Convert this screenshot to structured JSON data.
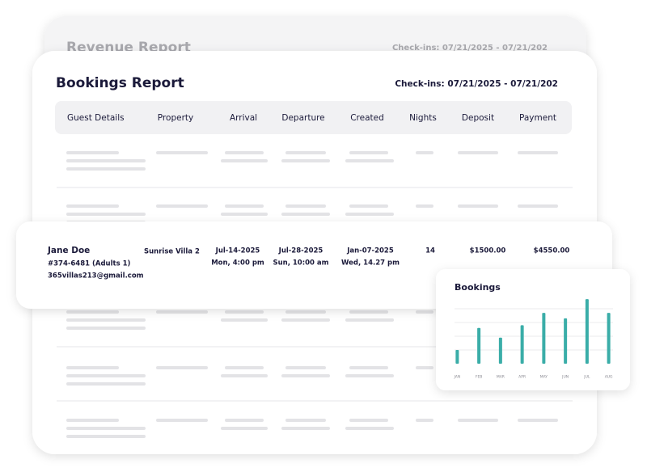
{
  "back_card": {
    "title": "Revenue Report",
    "checkins": "Check-ins: 07/21/2025 - 07/21/202"
  },
  "report": {
    "title": "Bookings Report",
    "checkins": "Check-ins: 07/21/2025 - 07/21/202",
    "columns": [
      "Guest Details",
      "Property",
      "Arrival",
      "Departure",
      "Created",
      "Nights",
      "Deposit",
      "Payment"
    ],
    "highlighted_row": {
      "guest_name": "Jane Doe",
      "guest_id": "#374-6481 (Adults 1)",
      "guest_email": "365villas213@gmail.com",
      "property": "Sunrise Villa 2",
      "arrival_date": "Jul-14-2025",
      "arrival_time": "Mon, 4:00 pm",
      "departure_date": "Jul-28-2025",
      "departure_time": "Sun, 10:00 am",
      "created_date": "Jan-07-2025",
      "created_time": "Wed, 14.27 pm",
      "nights": 14,
      "deposit": "$1500.00",
      "payment": "$4550.00"
    }
  },
  "chart_data": {
    "type": "bar",
    "title": "Bookings",
    "categories": [
      "JAN",
      "FEB",
      "MAR",
      "APR",
      "MAY",
      "JUN",
      "JUL",
      "AUG"
    ],
    "values": [
      1.0,
      2.6,
      1.9,
      2.8,
      3.7,
      3.3,
      4.7,
      3.7
    ],
    "color": "#3aada8",
    "ylim": [
      0,
      5
    ],
    "yticks": [
      1,
      2,
      3,
      4
    ],
    "grid": true
  }
}
